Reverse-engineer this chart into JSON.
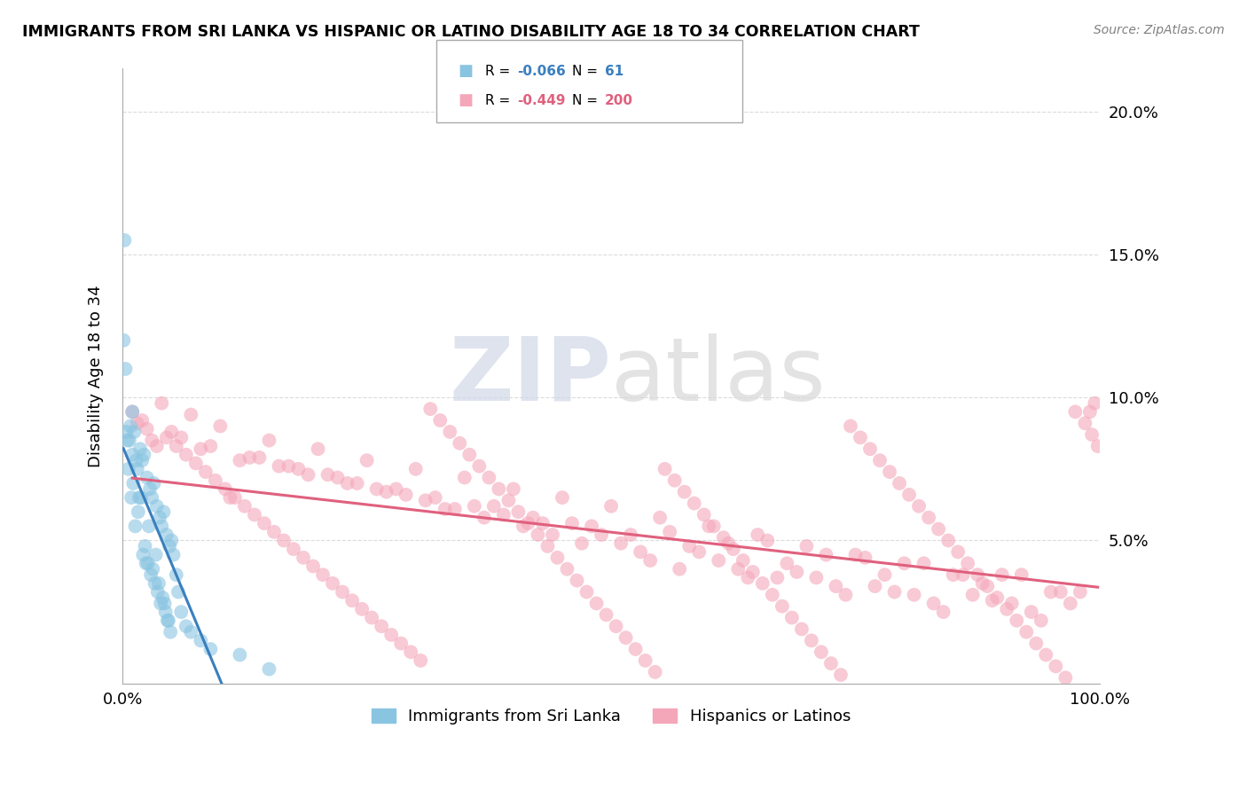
{
  "title": "IMMIGRANTS FROM SRI LANKA VS HISPANIC OR LATINO DISABILITY AGE 18 TO 34 CORRELATION CHART",
  "source": "Source: ZipAtlas.com",
  "ylabel": "Disability Age 18 to 34",
  "legend_label_blue": "Immigrants from Sri Lanka",
  "legend_label_pink": "Hispanics or Latinos",
  "legend_r_blue": "-0.066",
  "legend_n_blue": "61",
  "legend_r_pink": "-0.449",
  "legend_n_pink": "200",
  "blue_color": "#89c4e1",
  "pink_color": "#f4a7b9",
  "trend_blue_color": "#3a7fbf",
  "trend_pink_color": "#e0607e",
  "watermark_zip": "ZIP",
  "watermark_atlas": "atlas",
  "xlim": [
    0.0,
    1.0
  ],
  "ylim": [
    0.0,
    0.215
  ],
  "yticks": [
    0.0,
    0.05,
    0.1,
    0.15,
    0.2
  ],
  "ytick_labels": [
    "",
    "5.0%",
    "10.0%",
    "15.0%",
    "20.0%"
  ],
  "xticks": [
    0.0,
    1.0
  ],
  "xtick_labels": [
    "0.0%",
    "100.0%"
  ],
  "blue_scatter_x": [
    0.001,
    0.002,
    0.003,
    0.004,
    0.005,
    0.006,
    0.007,
    0.008,
    0.009,
    0.01,
    0.01,
    0.011,
    0.012,
    0.013,
    0.014,
    0.015,
    0.016,
    0.017,
    0.018,
    0.019,
    0.02,
    0.021,
    0.022,
    0.023,
    0.024,
    0.025,
    0.026,
    0.027,
    0.028,
    0.029,
    0.03,
    0.031,
    0.032,
    0.033,
    0.034,
    0.035,
    0.036,
    0.037,
    0.038,
    0.039,
    0.04,
    0.041,
    0.042,
    0.043,
    0.044,
    0.045,
    0.046,
    0.047,
    0.048,
    0.049,
    0.05,
    0.052,
    0.055,
    0.057,
    0.06,
    0.065,
    0.07,
    0.08,
    0.09,
    0.12,
    0.15
  ],
  "blue_scatter_y": [
    0.12,
    0.155,
    0.11,
    0.088,
    0.085,
    0.075,
    0.085,
    0.09,
    0.065,
    0.095,
    0.08,
    0.07,
    0.088,
    0.055,
    0.078,
    0.075,
    0.06,
    0.065,
    0.082,
    0.065,
    0.078,
    0.045,
    0.08,
    0.048,
    0.042,
    0.072,
    0.042,
    0.055,
    0.068,
    0.038,
    0.065,
    0.04,
    0.07,
    0.035,
    0.045,
    0.062,
    0.032,
    0.035,
    0.058,
    0.028,
    0.055,
    0.03,
    0.06,
    0.028,
    0.025,
    0.052,
    0.022,
    0.022,
    0.048,
    0.018,
    0.05,
    0.045,
    0.038,
    0.032,
    0.025,
    0.02,
    0.018,
    0.015,
    0.012,
    0.01,
    0.005
  ],
  "pink_scatter_x": [
    0.01,
    0.02,
    0.03,
    0.04,
    0.05,
    0.06,
    0.07,
    0.08,
    0.09,
    0.1,
    0.11,
    0.12,
    0.13,
    0.14,
    0.15,
    0.16,
    0.17,
    0.18,
    0.19,
    0.2,
    0.21,
    0.22,
    0.23,
    0.24,
    0.25,
    0.26,
    0.27,
    0.28,
    0.29,
    0.3,
    0.31,
    0.32,
    0.33,
    0.34,
    0.35,
    0.36,
    0.37,
    0.38,
    0.39,
    0.4,
    0.41,
    0.42,
    0.43,
    0.44,
    0.45,
    0.46,
    0.47,
    0.48,
    0.49,
    0.5,
    0.51,
    0.52,
    0.53,
    0.54,
    0.55,
    0.56,
    0.57,
    0.58,
    0.59,
    0.6,
    0.61,
    0.62,
    0.63,
    0.64,
    0.65,
    0.66,
    0.67,
    0.68,
    0.69,
    0.7,
    0.71,
    0.72,
    0.73,
    0.74,
    0.75,
    0.76,
    0.77,
    0.78,
    0.79,
    0.8,
    0.81,
    0.82,
    0.83,
    0.84,
    0.85,
    0.86,
    0.87,
    0.88,
    0.89,
    0.9,
    0.91,
    0.92,
    0.93,
    0.94,
    0.95,
    0.96,
    0.97,
    0.98,
    0.99,
    0.995,
    0.015,
    0.025,
    0.035,
    0.045,
    0.055,
    0.065,
    0.075,
    0.085,
    0.095,
    0.105,
    0.115,
    0.125,
    0.135,
    0.145,
    0.155,
    0.165,
    0.175,
    0.185,
    0.195,
    0.205,
    0.215,
    0.225,
    0.235,
    0.245,
    0.255,
    0.265,
    0.275,
    0.285,
    0.295,
    0.305,
    0.315,
    0.325,
    0.335,
    0.345,
    0.355,
    0.365,
    0.375,
    0.385,
    0.395,
    0.405,
    0.415,
    0.425,
    0.435,
    0.445,
    0.455,
    0.465,
    0.475,
    0.485,
    0.495,
    0.505,
    0.515,
    0.525,
    0.535,
    0.545,
    0.555,
    0.565,
    0.575,
    0.585,
    0.595,
    0.605,
    0.615,
    0.625,
    0.635,
    0.645,
    0.655,
    0.665,
    0.675,
    0.685,
    0.695,
    0.705,
    0.715,
    0.725,
    0.735,
    0.745,
    0.755,
    0.765,
    0.775,
    0.785,
    0.795,
    0.805,
    0.815,
    0.825,
    0.835,
    0.845,
    0.855,
    0.865,
    0.875,
    0.885,
    0.895,
    0.905,
    0.915,
    0.925,
    0.935,
    0.945,
    0.955,
    0.965,
    0.975,
    0.985,
    0.992,
    0.998
  ],
  "pink_scatter_y": [
    0.095,
    0.092,
    0.085,
    0.098,
    0.088,
    0.086,
    0.094,
    0.082,
    0.083,
    0.09,
    0.065,
    0.078,
    0.079,
    0.079,
    0.085,
    0.076,
    0.076,
    0.075,
    0.073,
    0.082,
    0.073,
    0.072,
    0.07,
    0.07,
    0.078,
    0.068,
    0.067,
    0.068,
    0.066,
    0.075,
    0.064,
    0.065,
    0.061,
    0.061,
    0.072,
    0.062,
    0.058,
    0.062,
    0.059,
    0.068,
    0.055,
    0.058,
    0.056,
    0.052,
    0.065,
    0.056,
    0.049,
    0.055,
    0.052,
    0.062,
    0.049,
    0.052,
    0.046,
    0.043,
    0.058,
    0.053,
    0.04,
    0.048,
    0.046,
    0.055,
    0.043,
    0.049,
    0.04,
    0.037,
    0.052,
    0.05,
    0.037,
    0.042,
    0.039,
    0.048,
    0.037,
    0.045,
    0.034,
    0.031,
    0.045,
    0.044,
    0.034,
    0.038,
    0.032,
    0.042,
    0.031,
    0.042,
    0.028,
    0.025,
    0.038,
    0.038,
    0.031,
    0.035,
    0.029,
    0.038,
    0.028,
    0.038,
    0.025,
    0.022,
    0.032,
    0.032,
    0.028,
    0.032,
    0.095,
    0.098,
    0.091,
    0.089,
    0.083,
    0.086,
    0.083,
    0.08,
    0.077,
    0.074,
    0.071,
    0.068,
    0.065,
    0.062,
    0.059,
    0.056,
    0.053,
    0.05,
    0.047,
    0.044,
    0.041,
    0.038,
    0.035,
    0.032,
    0.029,
    0.026,
    0.023,
    0.02,
    0.017,
    0.014,
    0.011,
    0.008,
    0.096,
    0.092,
    0.088,
    0.084,
    0.08,
    0.076,
    0.072,
    0.068,
    0.064,
    0.06,
    0.056,
    0.052,
    0.048,
    0.044,
    0.04,
    0.036,
    0.032,
    0.028,
    0.024,
    0.02,
    0.016,
    0.012,
    0.008,
    0.004,
    0.075,
    0.071,
    0.067,
    0.063,
    0.059,
    0.055,
    0.051,
    0.047,
    0.043,
    0.039,
    0.035,
    0.031,
    0.027,
    0.023,
    0.019,
    0.015,
    0.011,
    0.007,
    0.003,
    0.09,
    0.086,
    0.082,
    0.078,
    0.074,
    0.07,
    0.066,
    0.062,
    0.058,
    0.054,
    0.05,
    0.046,
    0.042,
    0.038,
    0.034,
    0.03,
    0.026,
    0.022,
    0.018,
    0.014,
    0.01,
    0.006,
    0.002,
    0.095,
    0.091,
    0.087,
    0.083
  ]
}
